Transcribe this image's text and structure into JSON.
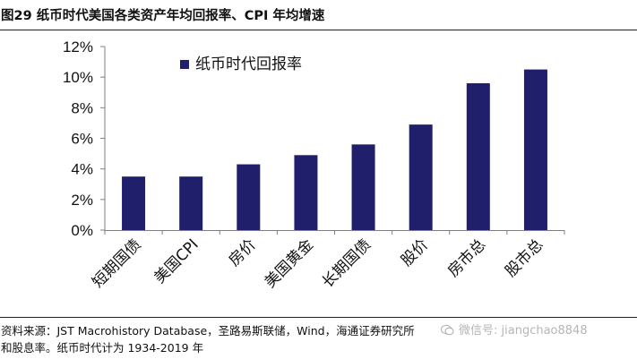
{
  "header": {
    "title": "图29 纸币时代美国各类资产年均回报率、CPI 年均增速"
  },
  "chart_data": {
    "type": "bar",
    "categories": [
      "短期国债",
      "美国CPI",
      "房价",
      "美国黄金",
      "长期国债",
      "股价",
      "房市总",
      "股市总"
    ],
    "series": [
      {
        "name": "纸币时代回报率",
        "values": [
          3.5,
          3.5,
          4.3,
          4.9,
          5.6,
          6.9,
          9.6,
          10.5
        ],
        "color": "#1F1F6B"
      }
    ],
    "yticks": [
      "0%",
      "2%",
      "4%",
      "6%",
      "8%",
      "10%",
      "12%"
    ],
    "ylim": [
      0,
      12
    ],
    "legend_position": "top-left",
    "grid": false
  },
  "footer": {
    "source_line1": "资料来源：JST Macrohistory Database，圣路易斯联储，Wind，海通证券研究所",
    "source_line2": "和股息率。纸币时代计为 1934-2019 年",
    "watermark": "微信号: jiangchao8848"
  }
}
